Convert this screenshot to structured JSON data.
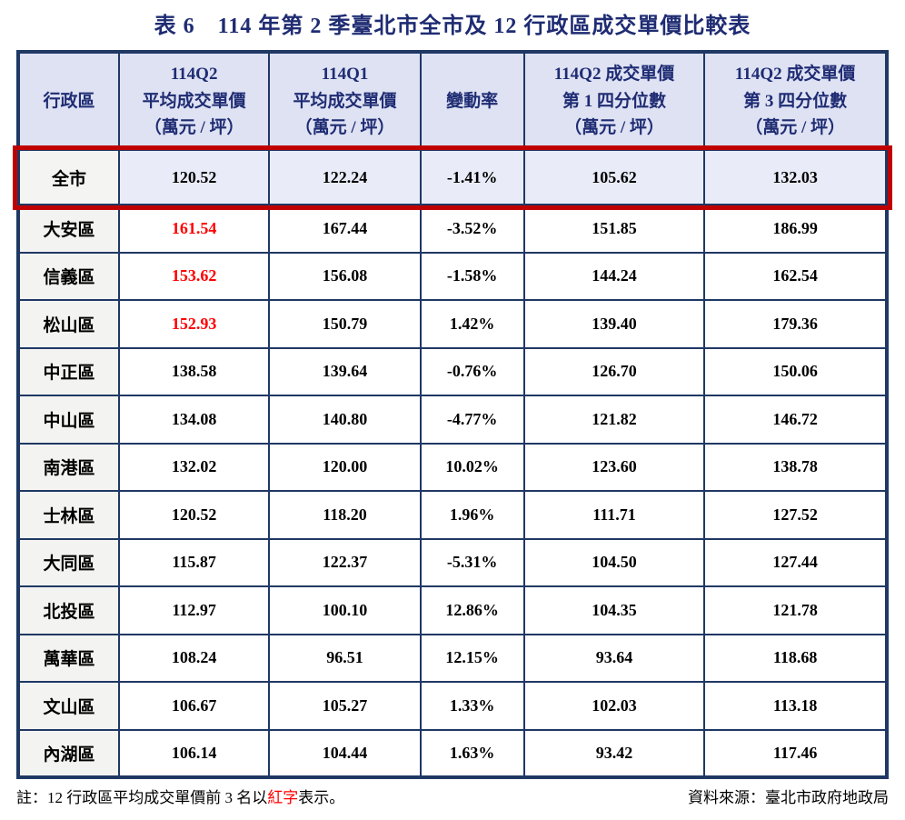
{
  "title": "表 6　114 年第 2 季臺北市全市及 12 行政區成交單價比較表",
  "table": {
    "headers": [
      "行政區",
      "114Q2\n平均成交單價\n（萬元 / 坪）",
      "114Q1\n平均成交單價\n（萬元 / 坪）",
      "變動率",
      "114Q2 成交單價\n第 1 四分位數\n（萬元 / 坪）",
      "114Q2 成交單價\n第 3 四分位數\n（萬元 / 坪）"
    ],
    "rows": [
      {
        "name": "全市",
        "values": [
          "120.52",
          "122.24",
          "-1.41%",
          "105.62",
          "132.03"
        ],
        "q2_red": false,
        "city": true
      },
      {
        "name": "大安區",
        "values": [
          "161.54",
          "167.44",
          "-3.52%",
          "151.85",
          "186.99"
        ],
        "q2_red": true,
        "city": false
      },
      {
        "name": "信義區",
        "values": [
          "153.62",
          "156.08",
          "-1.58%",
          "144.24",
          "162.54"
        ],
        "q2_red": true,
        "city": false
      },
      {
        "name": "松山區",
        "values": [
          "152.93",
          "150.79",
          "1.42%",
          "139.40",
          "179.36"
        ],
        "q2_red": true,
        "city": false
      },
      {
        "name": "中正區",
        "values": [
          "138.58",
          "139.64",
          "-0.76%",
          "126.70",
          "150.06"
        ],
        "q2_red": false,
        "city": false
      },
      {
        "name": "中山區",
        "values": [
          "134.08",
          "140.80",
          "-4.77%",
          "121.82",
          "146.72"
        ],
        "q2_red": false,
        "city": false
      },
      {
        "name": "南港區",
        "values": [
          "132.02",
          "120.00",
          "10.02%",
          "123.60",
          "138.78"
        ],
        "q2_red": false,
        "city": false
      },
      {
        "name": "士林區",
        "values": [
          "120.52",
          "118.20",
          "1.96%",
          "111.71",
          "127.52"
        ],
        "q2_red": false,
        "city": false
      },
      {
        "name": "大同區",
        "values": [
          "115.87",
          "122.37",
          "-5.31%",
          "104.50",
          "127.44"
        ],
        "q2_red": false,
        "city": false
      },
      {
        "name": "北投區",
        "values": [
          "112.97",
          "100.10",
          "12.86%",
          "104.35",
          "121.78"
        ],
        "q2_red": false,
        "city": false
      },
      {
        "name": "萬華區",
        "values": [
          "108.24",
          "96.51",
          "12.15%",
          "93.64",
          "118.68"
        ],
        "q2_red": false,
        "city": false
      },
      {
        "name": "文山區",
        "values": [
          "106.67",
          "105.27",
          "1.33%",
          "102.03",
          "113.18"
        ],
        "q2_red": false,
        "city": false
      },
      {
        "name": "內湖區",
        "values": [
          "106.14",
          "104.44",
          "1.63%",
          "93.42",
          "117.46"
        ],
        "q2_red": false,
        "city": false
      }
    ]
  },
  "footer": {
    "note_prefix": "註：12 行政區平均成交單價前 3 名以",
    "note_red": "紅字",
    "note_suffix": "表示。",
    "source": "資料來源：臺北市政府地政局"
  },
  "colors": {
    "title_navy": "#1F2C73",
    "border_navy": "#1F3864",
    "header_bg": "#DEE2F3",
    "city_row_bg": "#E9ECF8",
    "name_cell_bg": "#F3F3F1",
    "highlight_red_border": "#C00000",
    "highlight_red_text": "#FF0000"
  }
}
